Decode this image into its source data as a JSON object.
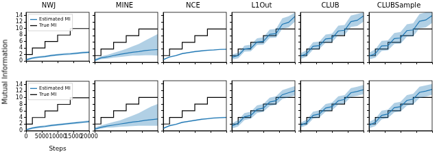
{
  "chart_data": [
    {
      "type": "line",
      "title": "NWJ",
      "xlim": [
        0,
        20000
      ],
      "xticks": [
        0,
        5000,
        10000,
        15000,
        20000
      ],
      "ylim": [
        0,
        15
      ],
      "yticks": [
        0,
        2,
        4,
        6,
        8,
        10,
        12,
        14
      ],
      "grid": false,
      "tick_labels": "y",
      "legend": "upper left",
      "x": [
        0,
        2000,
        4000,
        6000,
        8000,
        10000,
        12000,
        14000,
        16000,
        18000,
        20000
      ],
      "series": [
        {
          "name": "Estimated MI",
          "color": "#1f77b4",
          "values": [
            0.4,
            0.9,
            1.2,
            1.4,
            1.7,
            1.9,
            2.1,
            2.2,
            2.4,
            2.6,
            2.7
          ],
          "lower": [
            0.1,
            0.6,
            0.9,
            1.1,
            1.4,
            1.6,
            1.8,
            1.9,
            2.1,
            2.3,
            2.4
          ],
          "upper": [
            0.7,
            1.2,
            1.5,
            1.7,
            2.0,
            2.2,
            2.4,
            2.5,
            2.7,
            2.9,
            3.0
          ]
        },
        {
          "name": "True MI",
          "color": "#000000",
          "line_style": "steps",
          "values": [
            2,
            2,
            4,
            4,
            6,
            6,
            8,
            8,
            10,
            10,
            10
          ]
        }
      ]
    },
    {
      "type": "line",
      "title": "MINE",
      "xlim": [
        0,
        20000
      ],
      "xticks": [
        0,
        5000,
        10000,
        15000,
        20000
      ],
      "ylim": [
        0,
        15
      ],
      "yticks": [
        0,
        2,
        4,
        6,
        8,
        10,
        12,
        14
      ],
      "grid": false,
      "tick_labels": false,
      "x": [
        0,
        2000,
        4000,
        6000,
        8000,
        10000,
        12000,
        14000,
        16000,
        18000,
        20000
      ],
      "series": [
        {
          "color": "#1f77b4",
          "values": [
            0.6,
            1.3,
            1.6,
            2.0,
            2.4,
            2.7,
            3.0,
            3.2,
            3.5,
            3.7,
            3.8
          ],
          "lower": [
            0.3,
            0.9,
            1.1,
            1.4,
            1.6,
            1.8,
            2.0,
            2.0,
            2.1,
            2.1,
            2.0
          ],
          "upper": [
            1.0,
            1.8,
            2.2,
            2.8,
            3.4,
            4.0,
            4.8,
            5.5,
            6.5,
            7.5,
            8.5
          ]
        },
        {
          "color": "#000000",
          "line_style": "steps",
          "values": [
            2,
            2,
            4,
            4,
            6,
            6,
            8,
            8,
            10,
            10,
            10
          ]
        }
      ]
    },
    {
      "type": "line",
      "title": "NCE",
      "xlim": [
        0,
        20000
      ],
      "xticks": [
        0,
        5000,
        10000,
        15000,
        20000
      ],
      "ylim": [
        0,
        15
      ],
      "yticks": [
        0,
        2,
        4,
        6,
        8,
        10,
        12,
        14
      ],
      "grid": false,
      "tick_labels": false,
      "x": [
        0,
        2000,
        4000,
        6000,
        8000,
        10000,
        12000,
        14000,
        16000,
        18000,
        20000
      ],
      "series": [
        {
          "color": "#1f77b4",
          "values": [
            0.8,
            1.6,
            2.0,
            2.6,
            2.9,
            3.2,
            3.4,
            3.6,
            3.7,
            3.85,
            3.9
          ],
          "lower": [
            0.6,
            1.4,
            1.8,
            2.4,
            2.7,
            3.0,
            3.2,
            3.4,
            3.5,
            3.7,
            3.75
          ],
          "upper": [
            1.0,
            1.8,
            2.2,
            2.8,
            3.1,
            3.4,
            3.6,
            3.8,
            3.9,
            4.0,
            4.05
          ]
        },
        {
          "color": "#000000",
          "line_style": "steps",
          "values": [
            2,
            2,
            4,
            4,
            6,
            6,
            8,
            8,
            10,
            10,
            10
          ]
        }
      ]
    },
    {
      "type": "line",
      "title": "L1Out",
      "xlim": [
        0,
        20000
      ],
      "xticks": [
        0,
        5000,
        10000,
        15000,
        20000
      ],
      "ylim": [
        0,
        15
      ],
      "yticks": [
        0,
        2,
        4,
        6,
        8,
        10,
        12,
        14
      ],
      "grid": false,
      "tick_labels": false,
      "x": [
        0,
        2000,
        4000,
        6000,
        8000,
        10000,
        12000,
        14000,
        16000,
        18000,
        20000
      ],
      "series": [
        {
          "color": "#1f77b4",
          "values": [
            1.5,
            2.0,
            4.0,
            4.2,
            6.1,
            6.3,
            8.4,
            8.6,
            11.4,
            12.0,
            13.8
          ],
          "lower": [
            0.8,
            1.2,
            3.2,
            3.3,
            5.2,
            5.3,
            7.3,
            7.4,
            10.0,
            10.5,
            12.2
          ],
          "upper": [
            2.3,
            2.9,
            5.0,
            5.3,
            7.2,
            7.5,
            9.8,
            10.0,
            13.2,
            13.8,
            14.9
          ]
        },
        {
          "color": "#000000",
          "line_style": "steps",
          "values": [
            2,
            2,
            4,
            4,
            6,
            6,
            8,
            8,
            10,
            10,
            10
          ]
        }
      ]
    },
    {
      "type": "line",
      "title": "CLUB",
      "xlim": [
        0,
        20000
      ],
      "xticks": [
        0,
        5000,
        10000,
        15000,
        20000
      ],
      "ylim": [
        0,
        15
      ],
      "yticks": [
        0,
        2,
        4,
        6,
        8,
        10,
        12,
        14
      ],
      "grid": false,
      "tick_labels": false,
      "x": [
        0,
        2000,
        4000,
        6000,
        8000,
        10000,
        12000,
        14000,
        16000,
        18000,
        20000
      ],
      "series": [
        {
          "color": "#1f77b4",
          "values": [
            1.8,
            2.6,
            4.8,
            5.0,
            7.0,
            7.2,
            9.4,
            9.6,
            12.2,
            12.6,
            13.9
          ],
          "lower": [
            1.0,
            1.7,
            3.8,
            4.0,
            5.9,
            6.0,
            8.1,
            8.2,
            10.6,
            10.9,
            12.2
          ],
          "upper": [
            2.7,
            3.6,
            6.0,
            6.2,
            8.3,
            8.6,
            11.0,
            11.2,
            14.0,
            14.5,
            15.0
          ]
        },
        {
          "color": "#000000",
          "line_style": "steps",
          "values": [
            2,
            2,
            4,
            4,
            6,
            6,
            8,
            8,
            10,
            10,
            10
          ]
        }
      ]
    },
    {
      "type": "line",
      "title": "CLUBSample",
      "xlim": [
        0,
        20000
      ],
      "xticks": [
        0,
        5000,
        10000,
        15000,
        20000
      ],
      "ylim": [
        0,
        15
      ],
      "yticks": [
        0,
        2,
        4,
        6,
        8,
        10,
        12,
        14
      ],
      "grid": false,
      "tick_labels": false,
      "x": [
        0,
        2000,
        4000,
        6000,
        8000,
        10000,
        12000,
        14000,
        16000,
        18000,
        20000
      ],
      "series": [
        {
          "color": "#1f77b4",
          "values": [
            1.8,
            2.6,
            4.9,
            5.0,
            7.1,
            7.3,
            9.5,
            9.7,
            12.3,
            12.7,
            14.0
          ],
          "lower": [
            0.8,
            1.4,
            3.4,
            3.6,
            5.5,
            5.6,
            7.7,
            7.8,
            10.2,
            10.5,
            11.8
          ],
          "upper": [
            2.9,
            3.9,
            6.4,
            6.6,
            8.8,
            9.1,
            11.4,
            11.7,
            14.5,
            15.0,
            15.0
          ]
        },
        {
          "color": "#000000",
          "line_style": "steps",
          "values": [
            2,
            2,
            4,
            4,
            6,
            6,
            8,
            8,
            10,
            10,
            10
          ]
        }
      ]
    },
    {
      "type": "line",
      "xlabel": "Steps",
      "ylabel": "Mutual Information",
      "xlim": [
        0,
        20000
      ],
      "xticks": [
        0,
        5000,
        10000,
        15000,
        20000
      ],
      "ylim": [
        0,
        15
      ],
      "yticks": [
        0,
        2,
        4,
        6,
        8,
        10,
        12,
        14
      ],
      "grid": false,
      "legend": "upper left",
      "x": [
        0,
        2000,
        4000,
        6000,
        8000,
        10000,
        12000,
        14000,
        16000,
        18000,
        20000
      ],
      "series": [
        {
          "name": "Estimated MI",
          "color": "#1f77b4",
          "values": [
            0.3,
            0.8,
            1.1,
            1.3,
            1.6,
            1.8,
            2.0,
            2.2,
            2.4,
            2.6,
            2.8
          ],
          "lower": [
            0.1,
            0.5,
            0.8,
            1.0,
            1.3,
            1.5,
            1.7,
            1.9,
            2.1,
            2.3,
            2.5
          ],
          "upper": [
            0.5,
            1.1,
            1.4,
            1.6,
            1.9,
            2.1,
            2.3,
            2.5,
            2.7,
            2.9,
            3.1
          ]
        },
        {
          "name": "True MI",
          "color": "#000000",
          "line_style": "steps",
          "values": [
            2,
            2,
            4,
            4,
            6,
            6,
            8,
            8,
            10,
            10,
            10
          ]
        }
      ]
    },
    {
      "type": "line",
      "xlim": [
        0,
        20000
      ],
      "xticks": [
        0,
        5000,
        10000,
        15000,
        20000
      ],
      "ylim": [
        0,
        15
      ],
      "yticks": [
        0,
        2,
        4,
        6,
        8,
        10,
        12,
        14
      ],
      "grid": false,
      "tick_labels": false,
      "x": [
        0,
        2000,
        4000,
        6000,
        8000,
        10000,
        12000,
        14000,
        16000,
        18000,
        20000
      ],
      "series": [
        {
          "color": "#1f77b4",
          "values": [
            0.5,
            1.0,
            1.4,
            1.7,
            2.0,
            2.3,
            2.6,
            2.8,
            3.1,
            3.3,
            3.5
          ],
          "lower": [
            0.2,
            0.6,
            0.9,
            1.0,
            1.2,
            1.3,
            1.4,
            1.5,
            1.5,
            1.5,
            1.5
          ],
          "upper": [
            0.9,
            1.6,
            2.1,
            2.6,
            3.1,
            3.8,
            4.5,
            5.3,
            6.3,
            7.3,
            8.0
          ]
        },
        {
          "color": "#000000",
          "line_style": "steps",
          "values": [
            2,
            2,
            4,
            4,
            6,
            6,
            8,
            8,
            10,
            10,
            10
          ]
        }
      ]
    },
    {
      "type": "line",
      "xlim": [
        0,
        20000
      ],
      "xticks": [
        0,
        5000,
        10000,
        15000,
        20000
      ],
      "ylim": [
        0,
        15
      ],
      "yticks": [
        0,
        2,
        4,
        6,
        8,
        10,
        12,
        14
      ],
      "grid": false,
      "tick_labels": false,
      "x": [
        0,
        2000,
        4000,
        6000,
        8000,
        10000,
        12000,
        14000,
        16000,
        18000,
        20000
      ],
      "series": [
        {
          "color": "#1f77b4",
          "values": [
            0.7,
            1.5,
            1.9,
            2.5,
            2.8,
            3.1,
            3.4,
            3.6,
            3.8,
            3.9,
            4.0
          ],
          "lower": [
            0.5,
            1.3,
            1.7,
            2.3,
            2.6,
            2.9,
            3.2,
            3.4,
            3.6,
            3.7,
            3.85
          ],
          "upper": [
            0.9,
            1.7,
            2.1,
            2.7,
            3.0,
            3.3,
            3.6,
            3.8,
            4.0,
            4.1,
            4.15
          ]
        },
        {
          "color": "#000000",
          "line_style": "steps",
          "values": [
            2,
            2,
            4,
            4,
            6,
            6,
            8,
            8,
            10,
            10,
            10
          ]
        }
      ]
    },
    {
      "type": "line",
      "xlim": [
        0,
        20000
      ],
      "xticks": [
        0,
        5000,
        10000,
        15000,
        20000
      ],
      "ylim": [
        0,
        15
      ],
      "yticks": [
        0,
        2,
        4,
        6,
        8,
        10,
        12,
        14
      ],
      "grid": false,
      "tick_labels": false,
      "x": [
        0,
        2000,
        4000,
        6000,
        8000,
        10000,
        12000,
        14000,
        16000,
        18000,
        20000
      ],
      "series": [
        {
          "color": "#1f77b4",
          "values": [
            1.4,
            2.2,
            4.2,
            4.6,
            6.4,
            6.8,
            8.6,
            9.0,
            10.8,
            11.4,
            12.0
          ],
          "lower": [
            0.6,
            1.3,
            3.2,
            3.6,
            5.3,
            5.7,
            7.4,
            7.8,
            9.5,
            10.0,
            10.6
          ],
          "upper": [
            2.2,
            3.2,
            5.3,
            5.7,
            7.6,
            8.0,
            9.9,
            10.3,
            12.2,
            12.8,
            13.4
          ]
        },
        {
          "color": "#000000",
          "line_style": "steps",
          "values": [
            2,
            2,
            4,
            4,
            6,
            6,
            8,
            8,
            10,
            10,
            10
          ]
        }
      ]
    },
    {
      "type": "line",
      "xlim": [
        0,
        20000
      ],
      "xticks": [
        0,
        5000,
        10000,
        15000,
        20000
      ],
      "ylim": [
        0,
        15
      ],
      "yticks": [
        0,
        2,
        4,
        6,
        8,
        10,
        12,
        14
      ],
      "grid": false,
      "tick_labels": false,
      "x": [
        0,
        2000,
        4000,
        6000,
        8000,
        10000,
        12000,
        14000,
        16000,
        18000,
        20000
      ],
      "series": [
        {
          "color": "#1f77b4",
          "values": [
            1.6,
            2.4,
            4.6,
            5.0,
            6.8,
            7.2,
            9.0,
            9.4,
            11.4,
            11.8,
            12.3
          ],
          "lower": [
            0.9,
            1.6,
            3.6,
            4.0,
            5.7,
            6.1,
            7.8,
            8.2,
            10.1,
            10.5,
            11.0
          ],
          "upper": [
            2.4,
            3.3,
            5.7,
            6.1,
            8.0,
            8.4,
            10.3,
            10.7,
            12.8,
            13.2,
            13.7
          ]
        },
        {
          "color": "#000000",
          "line_style": "steps",
          "values": [
            2,
            2,
            4,
            4,
            6,
            6,
            8,
            8,
            10,
            10,
            10
          ]
        }
      ]
    },
    {
      "type": "line",
      "xlim": [
        0,
        20000
      ],
      "xticks": [
        0,
        5000,
        10000,
        15000,
        20000
      ],
      "ylim": [
        0,
        15
      ],
      "yticks": [
        0,
        2,
        4,
        6,
        8,
        10,
        12,
        14
      ],
      "grid": false,
      "tick_labels": false,
      "x": [
        0,
        2000,
        4000,
        6000,
        8000,
        10000,
        12000,
        14000,
        16000,
        18000,
        20000
      ],
      "series": [
        {
          "color": "#1f77b4",
          "values": [
            1.6,
            2.5,
            4.6,
            5.0,
            6.9,
            7.2,
            9.1,
            9.5,
            11.5,
            11.9,
            12.4
          ],
          "lower": [
            0.7,
            1.4,
            3.4,
            3.8,
            5.5,
            5.8,
            7.5,
            7.9,
            9.8,
            10.2,
            10.8
          ],
          "upper": [
            2.6,
            3.6,
            6.0,
            6.3,
            8.3,
            8.7,
            10.7,
            11.1,
            13.2,
            13.6,
            14.0
          ]
        },
        {
          "color": "#000000",
          "line_style": "steps",
          "values": [
            2,
            2,
            4,
            4,
            6,
            6,
            8,
            8,
            10,
            10,
            10
          ]
        }
      ]
    }
  ]
}
